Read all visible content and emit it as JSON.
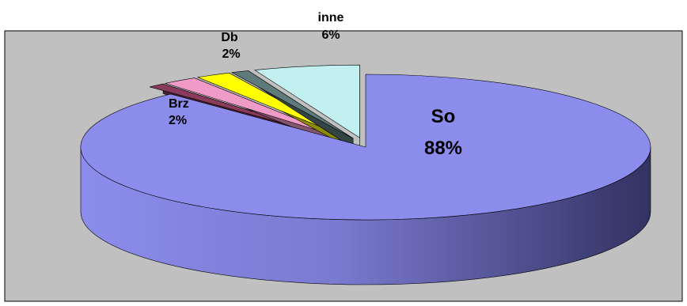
{
  "chart_data": {
    "type": "pie",
    "style": "3d-exploded",
    "slices": [
      {
        "label": "So",
        "percent_text": "88%",
        "value": 88,
        "color": "#8C8CEC"
      },
      {
        "label": "Brz",
        "percent_text": "2%",
        "value": 2,
        "color": "#F09AC8"
      },
      {
        "label": "Db",
        "percent_text": "2%",
        "value": 2,
        "color": "#FFFF00"
      },
      {
        "label": "inne",
        "percent_text": "6%",
        "value": 6,
        "color": "#C2F0F0"
      }
    ],
    "hidden_slices": [
      {
        "value": 1,
        "color": "#8A3A5A"
      },
      {
        "value": 1,
        "color": "#5E7A7A"
      }
    ],
    "plot_background": "#C0C0C0",
    "legend": "none"
  }
}
